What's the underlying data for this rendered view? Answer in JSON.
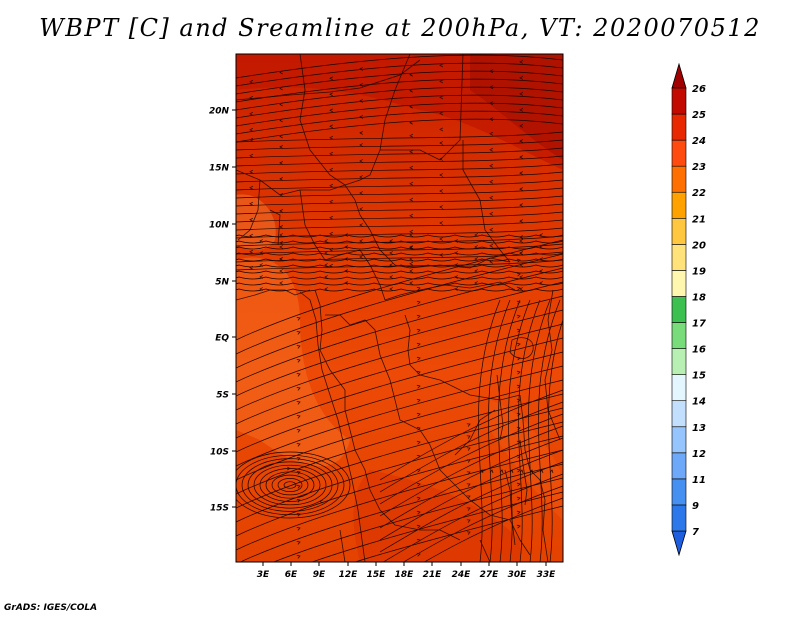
{
  "title": "WBPT [C] and Sreamline at 200hPa, VT: 2020070512",
  "footer": "GrADS: IGES/COLA",
  "map": {
    "lat_labels": [
      "20N",
      "15N",
      "10N",
      "5N",
      "EQ",
      "5S",
      "10S",
      "15S"
    ],
    "lon_labels": [
      "3E",
      "6E",
      "9E",
      "12E",
      "15E",
      "18E",
      "21E",
      "24E",
      "27E",
      "30E",
      "33E"
    ],
    "colors": {
      "background": "#ffffff",
      "field_dark": "#c81e00",
      "field_mid": "#e84000",
      "field_light": "#f25a12"
    }
  },
  "colorbar": {
    "levels": [
      "7",
      "9",
      "11",
      "12",
      "13",
      "14",
      "15",
      "16",
      "17",
      "18",
      "19",
      "20",
      "21",
      "22",
      "23",
      "24",
      "25",
      "26"
    ],
    "colors": [
      "#1e5fe0",
      "#2c78ea",
      "#4690f2",
      "#6ea8f8",
      "#96c4fc",
      "#c2e0fe",
      "#e4f6ff",
      "#b8f0b4",
      "#78dc7a",
      "#3cc050",
      "#fff6b0",
      "#ffe27a",
      "#ffc640",
      "#ffa200",
      "#ff7000",
      "#ff4a10",
      "#e82800",
      "#c20a00",
      "#a00000"
    ]
  }
}
